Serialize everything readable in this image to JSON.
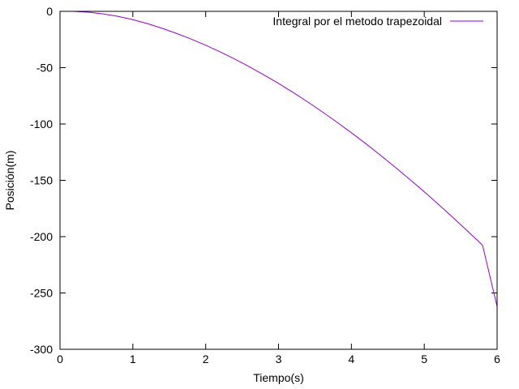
{
  "chart_data": {
    "type": "line",
    "title": "",
    "xlabel": "Tiempo(s)",
    "ylabel": "Posición(m)",
    "xlim": [
      0,
      6
    ],
    "ylim": [
      -300,
      0
    ],
    "xticks": [
      0,
      1,
      2,
      3,
      4,
      5,
      6
    ],
    "yticks": [
      0,
      -50,
      -100,
      -150,
      -200,
      -250,
      -300
    ],
    "grid": false,
    "legend_position": "top-right",
    "series": [
      {
        "name": "Integral por el metodo trapezoidal",
        "color": "#9400d3",
        "x": [
          0.18,
          0.4,
          0.6,
          0.8,
          1.0,
          1.2,
          1.4,
          1.6,
          1.8,
          2.0,
          2.2,
          2.4,
          2.6,
          2.8,
          3.0,
          3.2,
          3.4,
          3.6,
          3.8,
          4.0,
          4.2,
          4.4,
          4.6,
          4.8,
          5.0,
          5.2,
          5.4,
          5.6,
          5.8,
          6.0
        ],
        "y": [
          0,
          -0.8,
          -2.3,
          -4.5,
          -7.4,
          -10.9,
          -15.0,
          -19.6,
          -24.6,
          -30.1,
          -36.0,
          -42.4,
          -49.2,
          -56.4,
          -64.0,
          -72.0,
          -80.4,
          -89.2,
          -98.3,
          -107.8,
          -117.6,
          -127.8,
          -138.3,
          -149.1,
          -160.2,
          -171.7,
          -183.4,
          -195.4,
          -207.6,
          -262
        ]
      }
    ]
  }
}
